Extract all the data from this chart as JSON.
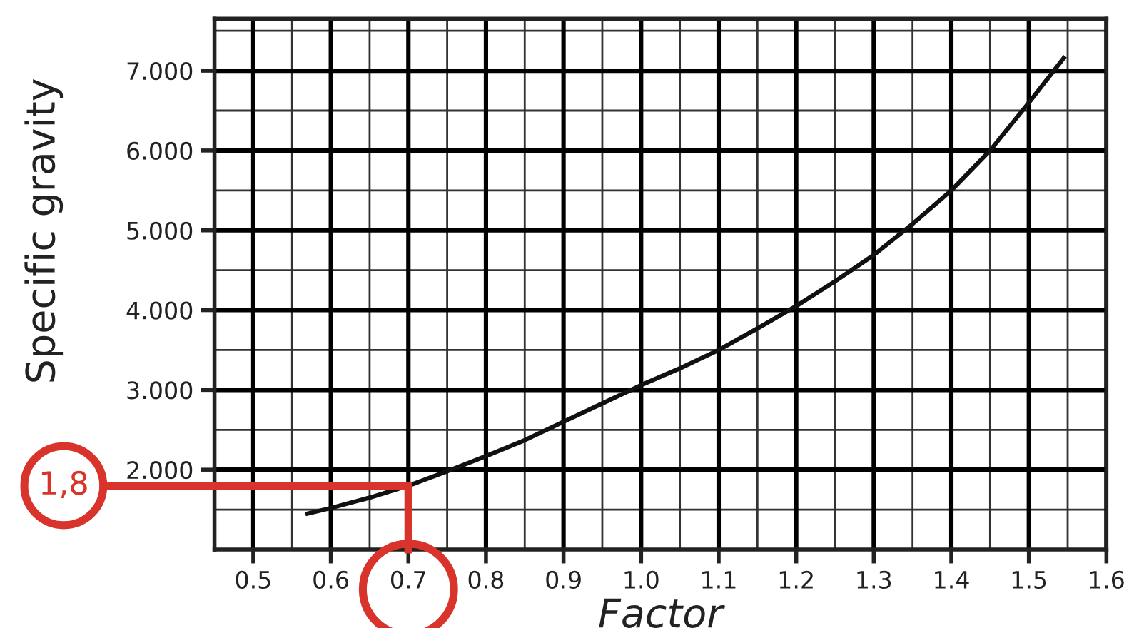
{
  "chart_data": {
    "type": "line",
    "xlabel": "Factor",
    "ylabel": "Specific gravity",
    "x": [
      0.57,
      0.6,
      0.65,
      0.7,
      0.75,
      0.8,
      0.85,
      0.9,
      0.95,
      1.0,
      1.05,
      1.1,
      1.15,
      1.2,
      1.25,
      1.3,
      1.35,
      1.4,
      1.45,
      1.5,
      1.545
    ],
    "series": [
      {
        "color": "#111111",
        "values": [
          1.45,
          1.52,
          1.65,
          1.8,
          1.98,
          2.17,
          2.37,
          2.6,
          2.83,
          3.06,
          3.27,
          3.5,
          3.77,
          4.05,
          4.36,
          4.69,
          5.08,
          5.5,
          6.0,
          6.6,
          7.16
        ]
      }
    ],
    "xlim": [
      0.45,
      1.6
    ],
    "ylim": [
      1.0,
      7.65
    ],
    "xticks": [
      0.5,
      0.6,
      {
        "value": 0.7,
        "label": "0.7"
      },
      0.8,
      0.9,
      {
        "value": 1.0,
        "label": "1.0"
      },
      1.1,
      1.2,
      1.3,
      1.4,
      1.5,
      1.6
    ],
    "yticks": [
      {
        "value": 2,
        "label": "2.000"
      },
      {
        "value": 3,
        "label": "3.000"
      },
      {
        "value": 4,
        "label": "4.000"
      },
      {
        "value": 5,
        "label": "5.000"
      },
      {
        "value": 6,
        "label": "6.000"
      },
      {
        "value": 7,
        "label": "7.000"
      }
    ],
    "grid": true,
    "marker": "none",
    "line_style": "solid",
    "annotations": [
      {
        "text": "1,8",
        "x": 0.7,
        "y": 1.8
      }
    ]
  }
}
